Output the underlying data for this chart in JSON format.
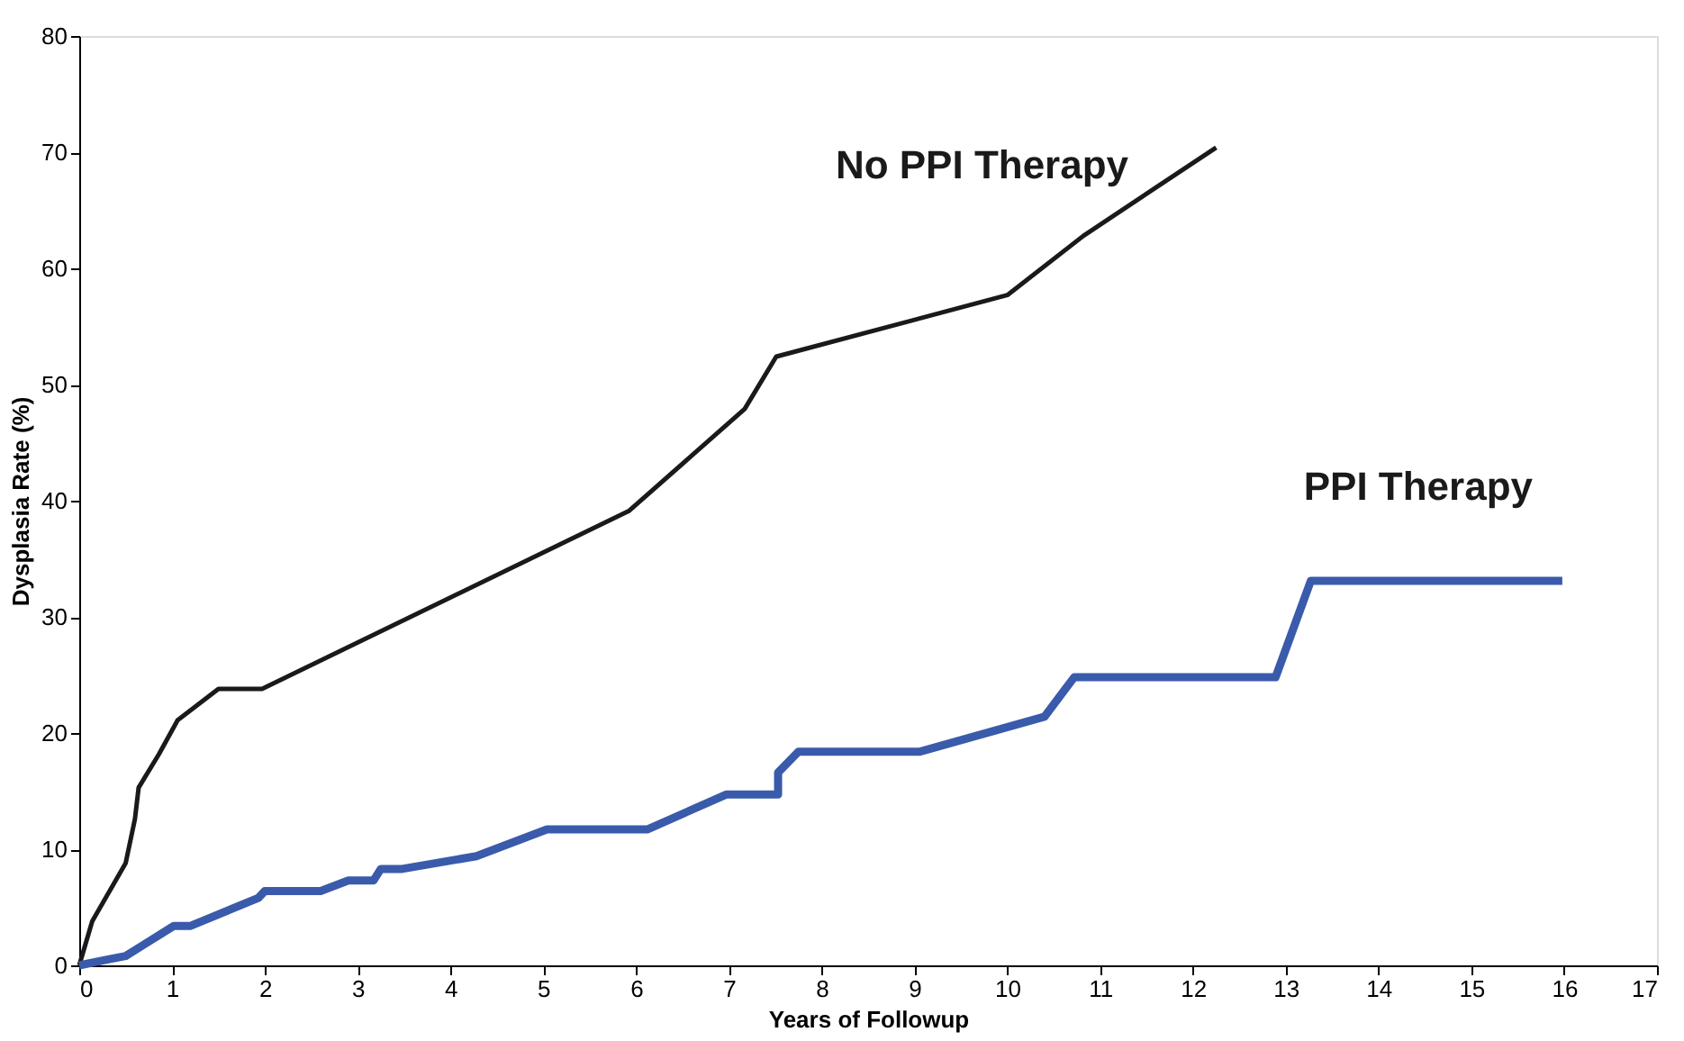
{
  "chart_data": {
    "type": "line",
    "xlabel": "Years of Followup",
    "ylabel": "Dysplasia Rate (%)",
    "xlim": [
      0,
      17
    ],
    "xticks": [
      0,
      1,
      2,
      3,
      4,
      5,
      6,
      7,
      8,
      9,
      10,
      11,
      12,
      13,
      14,
      15,
      16,
      17
    ],
    "ylim": [
      0,
      80
    ],
    "yticks": [
      0,
      10,
      20,
      30,
      40,
      50,
      60,
      70,
      80
    ],
    "grid": false,
    "marker": "none",
    "line_style": "solid",
    "series": [
      {
        "name": "No PPI Therapy",
        "color": "#1a1a1a",
        "x": [
          0,
          0.14,
          0.5,
          0.6,
          0.64,
          0.86,
          1.06,
          1.5,
          1.97,
          5.92,
          7.17,
          7.51,
          10.0,
          10.82,
          12.25
        ],
        "values": [
          0,
          3.8,
          8.8,
          12.6,
          15.3,
          18.2,
          21.1,
          23.8,
          23.8,
          39.1,
          47.9,
          52.4,
          57.7,
          62.8,
          70.4
        ]
      },
      {
        "name": "PPI Therapy",
        "color": "#3a5bab",
        "x": [
          0,
          0.3,
          0.5,
          0.7,
          1.02,
          1.2,
          1.93,
          2.0,
          2.6,
          2.9,
          3.17,
          3.25,
          3.48,
          4.28,
          5.04,
          6.12,
          6.97,
          7.53,
          7.53,
          7.75,
          9.06,
          10.4,
          10.72,
          12.89,
          13.27,
          15.98
        ],
        "values": [
          0,
          0.5,
          0.8,
          1.8,
          3.4,
          3.4,
          5.8,
          6.4,
          6.4,
          7.3,
          7.3,
          8.3,
          8.3,
          9.4,
          11.7,
          11.7,
          14.7,
          14.7,
          16.6,
          18.4,
          18.4,
          21.4,
          24.8,
          24.8,
          33.1,
          33.1
        ]
      }
    ]
  }
}
